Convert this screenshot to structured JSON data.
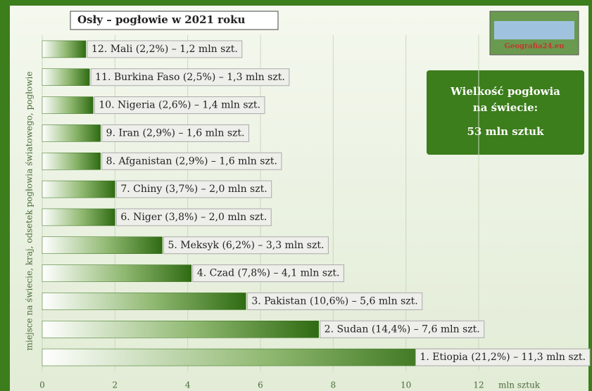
{
  "chart_data": {
    "type": "bar",
    "orientation": "horizontal",
    "title": "Osły – pogłowie w 2021 roku",
    "ylabel": "miejsce na świecie, kraj, odsetek pogłowia światowego, pogłowie",
    "xlabel": "mln sztuk",
    "separator": "–",
    "categories": [
      "12. Mali (2,2%)",
      "11. Burkina Faso (2,5%)",
      "10. Nigeria (2,6%)",
      "9. Iran (2,9%)",
      "8. Afganistan (2,9%)",
      "7. Chiny (3,7%)",
      "6. Niger (3,8%)",
      "5. Meksyk (6,2%)",
      "4. Czad (7,8%)",
      "3. Pakistan (10,6%)",
      "2. Sudan (14,4%)",
      "1. Etiopia (21,2%)"
    ],
    "values": [
      1.2,
      1.3,
      1.4,
      1.6,
      1.6,
      2.0,
      2.0,
      3.3,
      4.1,
      5.6,
      7.6,
      11.3
    ],
    "value_labels": [
      "1,2 mln szt.",
      "1,3 mln szt.",
      "1,4 mln szt.",
      "1,6 mln szt.",
      "1,6 mln szt.",
      "2,0 mln szt.",
      "2,0 mln szt.",
      "3,3 mln szt.",
      "4,1 mln szt.",
      "5,6 mln szt.",
      "7,6 mln szt.",
      "11,3 mln szt."
    ],
    "color": "#2f6b12",
    "xlim": [
      0,
      12
    ],
    "xticks": [
      0,
      2,
      4,
      6,
      8,
      10,
      12
    ],
    "grid": true,
    "info_box": [
      "Wielkość pogłowia",
      "na świecie:",
      "53 mln sztuk"
    ],
    "logo": "Geografia24.eu"
  }
}
